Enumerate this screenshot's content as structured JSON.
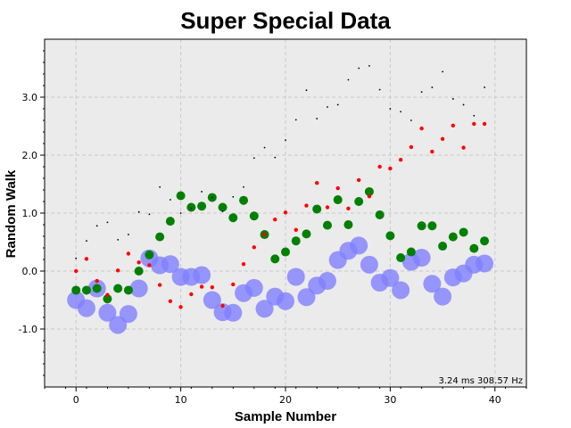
{
  "chart_data": {
    "type": "scatter",
    "title": "Super Special Data",
    "xlabel": "Sample Number",
    "ylabel": "Random Walk",
    "xlim": [
      -3,
      43
    ],
    "ylim": [
      -2,
      4
    ],
    "x_ticks": [
      0,
      10,
      20,
      30,
      40
    ],
    "y_ticks": [
      -1.0,
      0.0,
      1.0,
      2.0,
      3.0
    ],
    "x_tick_labels": [
      "0",
      "10",
      "20",
      "30",
      "40"
    ],
    "y_tick_labels": [
      "-1.0",
      "0.0",
      "1.0",
      "2.0",
      "3.0"
    ],
    "grid": true,
    "annotation": "3.24 ms 308.57 Hz",
    "series": [
      {
        "color": "#8080ff",
        "marker": "large circle",
        "x": [
          0,
          1,
          2,
          3,
          4,
          5,
          6,
          7,
          8,
          9,
          10,
          11,
          12,
          13,
          14,
          15,
          16,
          17,
          18,
          19,
          20,
          21,
          22,
          23,
          24,
          25,
          26,
          27,
          28,
          29,
          30,
          31,
          32,
          33,
          34,
          35,
          36,
          37,
          38,
          39
        ],
        "y": [
          -0.5,
          -0.64,
          -0.3,
          -0.72,
          -0.93,
          -0.74,
          -0.3,
          0.22,
          0.1,
          0.12,
          -0.1,
          -0.1,
          -0.07,
          -0.5,
          -0.71,
          -0.72,
          -0.38,
          -0.29,
          -0.65,
          -0.44,
          -0.52,
          -0.1,
          -0.45,
          -0.25,
          -0.17,
          0.19,
          0.35,
          0.44,
          0.11,
          -0.2,
          -0.12,
          -0.33,
          0.16,
          0.23,
          -0.22,
          -0.44,
          -0.11,
          -0.04,
          0.11,
          0.13
        ]
      },
      {
        "color": "#008000",
        "marker": "medium circle",
        "x": [
          0,
          1,
          2,
          3,
          4,
          5,
          6,
          7,
          8,
          9,
          10,
          11,
          12,
          13,
          14,
          15,
          16,
          17,
          18,
          19,
          20,
          21,
          22,
          23,
          24,
          25,
          26,
          27,
          28,
          29,
          30,
          31,
          32,
          33,
          34,
          35,
          36,
          37,
          38,
          39
        ],
        "y": [
          -0.33,
          -0.33,
          -0.3,
          -0.48,
          -0.3,
          -0.33,
          0.0,
          0.28,
          0.59,
          0.86,
          1.3,
          1.1,
          1.12,
          1.27,
          1.1,
          0.92,
          1.22,
          0.95,
          0.63,
          0.21,
          0.33,
          0.52,
          0.64,
          1.07,
          0.79,
          1.23,
          0.8,
          1.2,
          1.37,
          0.97,
          0.61,
          0.23,
          0.33,
          0.78,
          0.78,
          0.43,
          0.59,
          0.67,
          0.39,
          0.52
        ]
      },
      {
        "color": "#ff0000",
        "marker": "small dot",
        "x": [
          0,
          1,
          2,
          3,
          4,
          5,
          6,
          7,
          8,
          9,
          10,
          11,
          12,
          13,
          14,
          15,
          16,
          17,
          18,
          19,
          20,
          21,
          22,
          23,
          24,
          25,
          26,
          27,
          28,
          29,
          30,
          31,
          32,
          33,
          34,
          35,
          36,
          37,
          38,
          39
        ],
        "y": [
          0.0,
          0.21,
          -0.17,
          -0.41,
          0.01,
          0.3,
          0.15,
          0.1,
          -0.24,
          -0.52,
          -0.62,
          -0.4,
          -0.27,
          -0.28,
          -0.6,
          -0.23,
          0.12,
          0.41,
          0.63,
          0.89,
          1.01,
          0.71,
          1.13,
          1.52,
          1.1,
          1.43,
          1.08,
          1.57,
          1.29,
          1.8,
          1.77,
          1.92,
          2.14,
          2.46,
          2.06,
          2.28,
          2.51,
          2.13,
          2.54,
          2.54
        ]
      },
      {
        "color": "#000000",
        "marker": "tiny dot",
        "x": [
          0,
          1,
          2,
          3,
          4,
          5,
          6,
          7,
          8,
          9,
          10,
          11,
          12,
          13,
          14,
          15,
          16,
          17,
          18,
          19,
          20,
          21,
          22,
          23,
          24,
          25,
          26,
          27,
          28,
          29,
          30,
          31,
          32,
          33,
          34,
          35,
          36,
          37,
          38,
          39
        ],
        "y": [
          0.22,
          0.52,
          0.78,
          0.84,
          0.54,
          0.63,
          1.02,
          0.98,
          1.45,
          1.23,
          1.0,
          1.08,
          1.37,
          1.27,
          1.03,
          1.28,
          1.45,
          1.95,
          2.13,
          1.96,
          2.26,
          2.61,
          3.12,
          2.63,
          2.83,
          2.87,
          3.3,
          3.5,
          3.54,
          3.13,
          2.8,
          2.75,
          2.6,
          3.09,
          3.17,
          3.44,
          2.97,
          2.87,
          2.68,
          3.17
        ]
      }
    ]
  }
}
